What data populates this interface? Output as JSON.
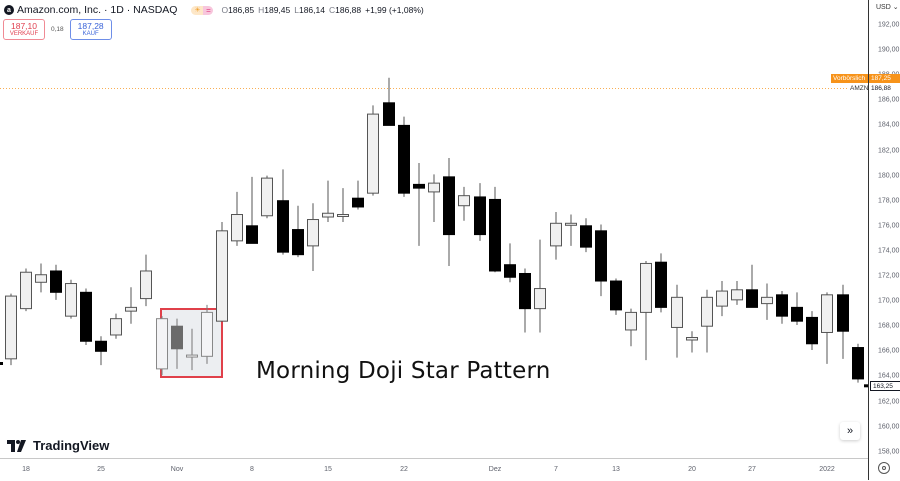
{
  "header": {
    "logo_letter": "a",
    "title": "Amazon.com, Inc. · 1D · NASDAQ",
    "badge_sun": "☀",
    "badge_eq": "=",
    "ohlc": {
      "o_label": "O",
      "o": "186,85",
      "h_label": "H",
      "h": "189,45",
      "l_label": "L",
      "l": "186,14",
      "c_label": "C",
      "c": "186,88",
      "change": "+1,99 (+1,08%)"
    }
  },
  "trade": {
    "sell_price": "187,10",
    "sell_label": "VERKAUF",
    "spread": "0,18",
    "buy_price": "187,28",
    "buy_label": "KAUF"
  },
  "yaxis": {
    "currency": "USD ⌄",
    "ticks": [
      "192,00",
      "190,00",
      "188,00",
      "186,00",
      "184,00",
      "182,00",
      "180,00",
      "178,00",
      "176,00",
      "174,00",
      "172,00",
      "170,00",
      "168,00",
      "166,00",
      "164,00",
      "162,00",
      "160,00",
      "158,00"
    ],
    "premarket_label": "Vorbörslich",
    "premarket_price": "187,25",
    "symbol_label": "AMZN",
    "symbol_price": "186,88",
    "last_price": "163,25"
  },
  "xaxis": {
    "ticks": [
      {
        "label": "18",
        "x": 26
      },
      {
        "label": "25",
        "x": 101
      },
      {
        "label": "Nov",
        "x": 177
      },
      {
        "label": "8",
        "x": 252
      },
      {
        "label": "15",
        "x": 328
      },
      {
        "label": "22",
        "x": 404
      },
      {
        "label": "Dez",
        "x": 495
      },
      {
        "label": "7",
        "x": 556
      },
      {
        "label": "13",
        "x": 616
      },
      {
        "label": "20",
        "x": 692
      },
      {
        "label": "27",
        "x": 752
      },
      {
        "label": "2022",
        "x": 827
      }
    ]
  },
  "annotation": {
    "text": "Morning Doji Star Pattern",
    "box_color": "#e0404a"
  },
  "branding": {
    "logo_mark": "17",
    "name": "TradingView"
  },
  "scroll_button": "»",
  "colors": {
    "up_fill": "#f0f0f0",
    "down_fill": "#000000",
    "premarket": "#f7931a",
    "sell": "#e04050",
    "buy": "#3a63d8"
  },
  "chart_data": {
    "type": "candlestick",
    "title": "Amazon.com, Inc. · 1D · NASDAQ",
    "xlabel": "",
    "ylabel": "USD",
    "ylim": [
      157.5,
      193
    ],
    "grid": false,
    "annotations": [
      "Morning Doji Star Pattern (highlighted box around 3 candles near Nov 1-4)"
    ],
    "candles": [
      {
        "x": 11,
        "o": 165.4,
        "h": 170.6,
        "l": 164.9,
        "c": 170.4
      },
      {
        "x": 26,
        "o": 169.4,
        "h": 172.6,
        "l": 169.2,
        "c": 172.3
      },
      {
        "x": 41,
        "o": 171.5,
        "h": 173.0,
        "l": 170.7,
        "c": 172.1
      },
      {
        "x": 56,
        "o": 172.4,
        "h": 172.9,
        "l": 170.1,
        "c": 170.7
      },
      {
        "x": 71,
        "o": 168.8,
        "h": 171.7,
        "l": 168.6,
        "c": 171.4
      },
      {
        "x": 86,
        "o": 170.7,
        "h": 171.0,
        "l": 166.5,
        "c": 166.8
      },
      {
        "x": 101,
        "o": 166.8,
        "h": 167.2,
        "l": 164.9,
        "c": 166.0
      },
      {
        "x": 116,
        "o": 167.3,
        "h": 169.0,
        "l": 167.0,
        "c": 168.6
      },
      {
        "x": 131,
        "o": 169.2,
        "h": 171.1,
        "l": 168.2,
        "c": 169.5
      },
      {
        "x": 146,
        "o": 170.2,
        "h": 173.7,
        "l": 169.6,
        "c": 172.4
      },
      {
        "x": 162,
        "o": 164.6,
        "h": 168.8,
        "l": 164.1,
        "c": 168.6
      },
      {
        "x": 177,
        "o": 168.0,
        "h": 168.6,
        "l": 164.6,
        "c": 166.2
      },
      {
        "x": 192,
        "o": 165.6,
        "h": 167.8,
        "l": 164.5,
        "c": 165.7
      },
      {
        "x": 207,
        "o": 165.6,
        "h": 169.7,
        "l": 165.0,
        "c": 169.1
      },
      {
        "x": 222,
        "o": 168.4,
        "h": 176.3,
        "l": 168.4,
        "c": 175.6
      },
      {
        "x": 237,
        "o": 174.8,
        "h": 178.7,
        "l": 174.4,
        "c": 176.9
      },
      {
        "x": 252,
        "o": 176.0,
        "h": 179.9,
        "l": 175.5,
        "c": 174.6
      },
      {
        "x": 267,
        "o": 176.8,
        "h": 180.0,
        "l": 176.6,
        "c": 179.8
      },
      {
        "x": 283,
        "o": 178.0,
        "h": 180.5,
        "l": 173.7,
        "c": 173.9
      },
      {
        "x": 298,
        "o": 175.7,
        "h": 177.6,
        "l": 173.5,
        "c": 173.7
      },
      {
        "x": 313,
        "o": 174.4,
        "h": 177.8,
        "l": 172.4,
        "c": 176.5
      },
      {
        "x": 328,
        "o": 176.7,
        "h": 179.6,
        "l": 176.3,
        "c": 177.0
      },
      {
        "x": 343,
        "o": 176.8,
        "h": 179.0,
        "l": 176.3,
        "c": 176.9
      },
      {
        "x": 358,
        "o": 178.2,
        "h": 179.6,
        "l": 177.3,
        "c": 177.5
      },
      {
        "x": 373,
        "o": 178.6,
        "h": 185.6,
        "l": 178.4,
        "c": 184.9
      },
      {
        "x": 389,
        "o": 185.8,
        "h": 187.8,
        "l": 184.8,
        "c": 184.0
      },
      {
        "x": 404,
        "o": 184.0,
        "h": 184.7,
        "l": 178.3,
        "c": 178.6
      },
      {
        "x": 419,
        "o": 179.3,
        "h": 181.0,
        "l": 174.4,
        "c": 179.0
      },
      {
        "x": 434,
        "o": 178.7,
        "h": 180.1,
        "l": 176.3,
        "c": 179.4
      },
      {
        "x": 449,
        "o": 179.9,
        "h": 181.4,
        "l": 172.8,
        "c": 175.3
      },
      {
        "x": 464,
        "o": 177.6,
        "h": 179.1,
        "l": 176.4,
        "c": 178.4
      },
      {
        "x": 480,
        "o": 178.3,
        "h": 179.4,
        "l": 174.8,
        "c": 175.3
      },
      {
        "x": 495,
        "o": 178.1,
        "h": 179.1,
        "l": 172.3,
        "c": 172.4
      },
      {
        "x": 510,
        "o": 172.9,
        "h": 174.6,
        "l": 171.5,
        "c": 171.9
      },
      {
        "x": 525,
        "o": 172.2,
        "h": 172.6,
        "l": 167.5,
        "c": 169.4
      },
      {
        "x": 540,
        "o": 169.4,
        "h": 174.9,
        "l": 167.5,
        "c": 171.0
      },
      {
        "x": 556,
        "o": 174.4,
        "h": 177.1,
        "l": 173.3,
        "c": 176.2
      },
      {
        "x": 571,
        "o": 176.2,
        "h": 176.9,
        "l": 174.4,
        "c": 176.2
      },
      {
        "x": 586,
        "o": 176.0,
        "h": 176.6,
        "l": 173.9,
        "c": 174.3
      },
      {
        "x": 601,
        "o": 175.6,
        "h": 176.1,
        "l": 170.4,
        "c": 171.6
      },
      {
        "x": 616,
        "o": 171.6,
        "h": 171.8,
        "l": 168.9,
        "c": 169.3
      },
      {
        "x": 631,
        "o": 167.7,
        "h": 169.4,
        "l": 166.4,
        "c": 169.1
      },
      {
        "x": 646,
        "o": 169.1,
        "h": 173.2,
        "l": 165.3,
        "c": 173.0
      },
      {
        "x": 661,
        "o": 173.1,
        "h": 173.8,
        "l": 169.1,
        "c": 169.5
      },
      {
        "x": 677,
        "o": 167.9,
        "h": 171.3,
        "l": 165.5,
        "c": 170.3
      },
      {
        "x": 692,
        "o": 166.9,
        "h": 167.6,
        "l": 165.9,
        "c": 167.1
      },
      {
        "x": 707,
        "o": 168.0,
        "h": 170.9,
        "l": 165.9,
        "c": 170.3
      },
      {
        "x": 722,
        "o": 169.6,
        "h": 171.6,
        "l": 168.8,
        "c": 170.8
      },
      {
        "x": 737,
        "o": 170.1,
        "h": 171.6,
        "l": 169.7,
        "c": 170.9
      },
      {
        "x": 752,
        "o": 170.9,
        "h": 172.9,
        "l": 169.5,
        "c": 169.5
      },
      {
        "x": 767,
        "o": 169.8,
        "h": 171.4,
        "l": 168.5,
        "c": 170.3
      },
      {
        "x": 782,
        "o": 170.5,
        "h": 170.8,
        "l": 168.2,
        "c": 168.8
      },
      {
        "x": 797,
        "o": 169.5,
        "h": 170.7,
        "l": 168.1,
        "c": 168.4
      },
      {
        "x": 812,
        "o": 168.7,
        "h": 169.2,
        "l": 166.1,
        "c": 166.6
      },
      {
        "x": 827,
        "o": 167.5,
        "h": 170.7,
        "l": 165.0,
        "c": 170.5
      },
      {
        "x": 843,
        "o": 170.5,
        "h": 171.3,
        "l": 165.4,
        "c": 167.6
      },
      {
        "x": 858,
        "o": 166.3,
        "h": 166.6,
        "l": 163.5,
        "c": 163.8
      }
    ]
  }
}
